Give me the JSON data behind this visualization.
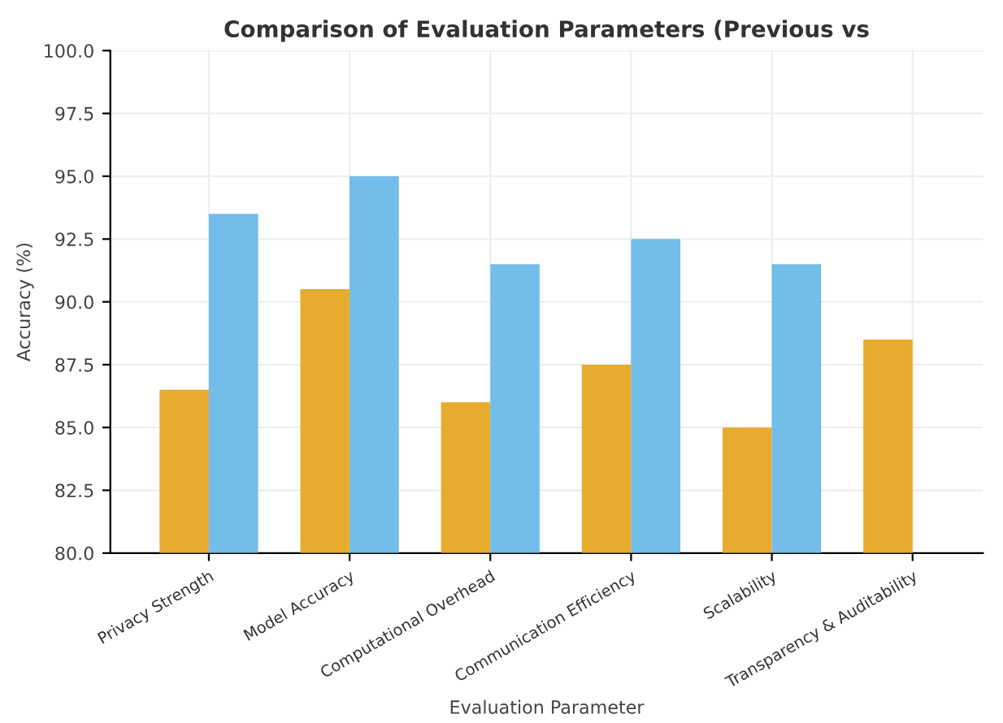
{
  "chart_data": {
    "type": "bar",
    "title": "Comparison of Evaluation Parameters (Previous vs",
    "xlabel": "Evaluation Parameter",
    "ylabel": "Accuracy (%)",
    "categories": [
      "Privacy Strength",
      "Model Accuracy",
      "Computational Overhead",
      "Communication Efficiency",
      "Scalability",
      "Transparency & Auditability"
    ],
    "series": [
      {
        "color": "#e8ab2e",
        "values": [
          86.5,
          90.5,
          86.0,
          87.5,
          85.0,
          88.5
        ]
      },
      {
        "color": "#72bde9",
        "values": [
          93.5,
          95.0,
          91.5,
          92.5,
          91.5,
          null
        ]
      }
    ],
    "ylim": [
      80,
      100
    ],
    "yticks": [
      {
        "value": 80,
        "label": "80.0"
      },
      {
        "value": 82.5,
        "label": "82.5"
      },
      {
        "value": 85,
        "label": "85.0"
      },
      {
        "value": 87.5,
        "label": "87.5"
      },
      {
        "value": 90,
        "label": "90.0"
      },
      {
        "value": 92.5,
        "label": "92.5"
      },
      {
        "value": 95,
        "label": "95.0"
      },
      {
        "value": 97.5,
        "label": "97.5"
      },
      {
        "value": 100,
        "label": "100.0"
      }
    ],
    "grid": true
  }
}
